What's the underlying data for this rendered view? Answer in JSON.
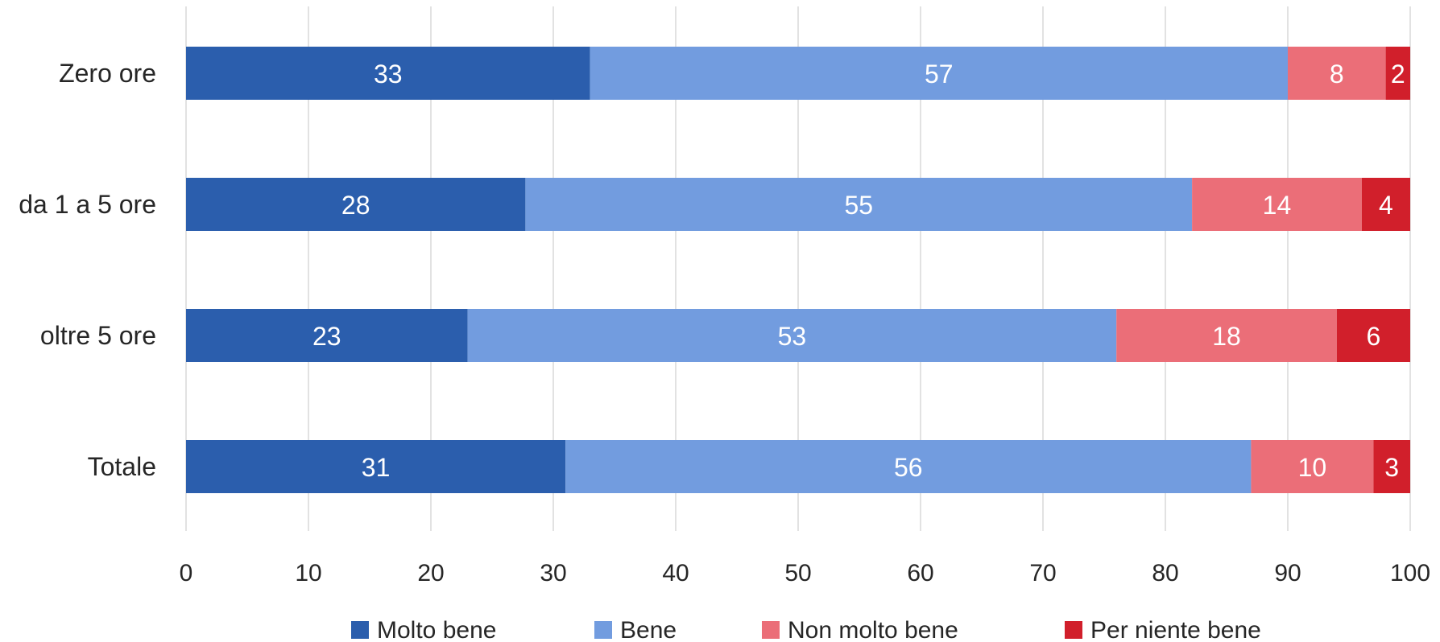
{
  "chart_data": {
    "type": "bar",
    "orientation": "horizontal",
    "stacked": true,
    "categories": [
      "Zero ore",
      "da 1 a 5 ore",
      "oltre 5 ore",
      "Totale"
    ],
    "series": [
      {
        "name": "Molto bene",
        "color": "#2b5ead",
        "values": [
          33,
          28,
          23,
          31
        ],
        "labels": [
          "33",
          "28",
          "23",
          "31"
        ]
      },
      {
        "name": "Bene",
        "color": "#729cdf",
        "values": [
          57,
          55,
          53,
          56
        ],
        "labels": [
          "57",
          "55",
          "53",
          "56"
        ]
      },
      {
        "name": "Non molto bene",
        "color": "#eb6e78",
        "values": [
          8,
          14,
          18,
          10
        ],
        "labels": [
          "8",
          "14",
          "18",
          "10"
        ]
      },
      {
        "name": "Per niente bene",
        "color": "#d11f2b",
        "values": [
          2,
          4,
          6,
          3
        ],
        "labels": [
          "2",
          "4",
          "6",
          "3"
        ]
      }
    ],
    "xlim": [
      0,
      100
    ],
    "xticks": [
      0,
      10,
      20,
      30,
      40,
      50,
      60,
      70,
      80,
      90,
      100
    ],
    "xtick_labels": [
      "0",
      "10",
      "20",
      "30",
      "40",
      "50",
      "60",
      "70",
      "80",
      "90",
      "100"
    ],
    "grid": true,
    "legend_position": "bottom",
    "colors": {
      "grid": "#d9d9d9",
      "text": "#262626",
      "data_label": "#ffffff"
    }
  }
}
